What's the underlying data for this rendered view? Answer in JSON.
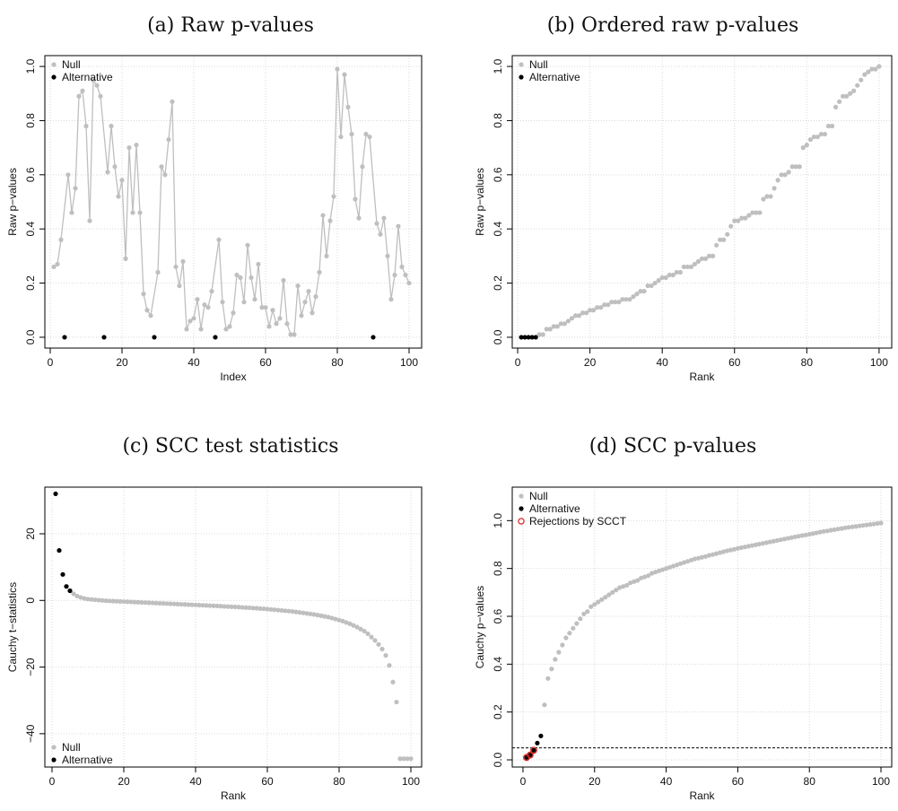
{
  "colors": {
    "null": "#bfbfbf",
    "alternative": "#000000",
    "rejection": "#e02020",
    "grid": "#d9d9d9"
  },
  "chart_data": [
    {
      "type": "line",
      "title": "(a) Raw p-values",
      "xlabel": "Index",
      "ylabel": "Raw p−values",
      "xlim": [
        -1.5,
        103.5
      ],
      "ylim": [
        -0.04,
        1.04
      ],
      "xticks": [
        0,
        20,
        40,
        60,
        80,
        100
      ],
      "yticks": [
        0.0,
        0.2,
        0.4,
        0.6,
        0.8,
        1.0
      ],
      "ytick_labels": [
        "0.0",
        "0.2",
        "0.4",
        "0.6",
        "0.8",
        "1.0"
      ],
      "grid": true,
      "connect_null": true,
      "legend": {
        "position": "top-left",
        "entries": [
          "Null",
          "Alternative"
        ]
      },
      "series": [
        {
          "name": "Null",
          "x": [
            1,
            2,
            3,
            5,
            6,
            7,
            8,
            9,
            10,
            11,
            12,
            13,
            14,
            16,
            17,
            18,
            19,
            20,
            21,
            22,
            23,
            24,
            25,
            26,
            27,
            28,
            30,
            31,
            32,
            33,
            34,
            35,
            36,
            37,
            38,
            39,
            40,
            41,
            42,
            43,
            44,
            45,
            47,
            48,
            49,
            50,
            51,
            52,
            53,
            54,
            55,
            56,
            57,
            58,
            59,
            60,
            61,
            62,
            63,
            64,
            65,
            66,
            67,
            68,
            69,
            70,
            71,
            72,
            73,
            74,
            75,
            76,
            77,
            78,
            79,
            80,
            81,
            82,
            83,
            84,
            85,
            86,
            87,
            88,
            89,
            91,
            92,
            93,
            94,
            95,
            96,
            97,
            98,
            99,
            100
          ],
          "y": [
            0.26,
            0.27,
            0.36,
            0.6,
            0.46,
            0.55,
            0.89,
            0.91,
            0.78,
            0.43,
            0.95,
            0.93,
            0.89,
            0.61,
            0.78,
            0.63,
            0.52,
            0.58,
            0.29,
            0.7,
            0.46,
            0.71,
            0.46,
            0.16,
            0.1,
            0.08,
            0.24,
            0.63,
            0.6,
            0.73,
            0.87,
            0.26,
            0.19,
            0.28,
            0.03,
            0.06,
            0.07,
            0.14,
            0.03,
            0.12,
            0.11,
            0.17,
            0.36,
            0.13,
            0.03,
            0.04,
            0.09,
            0.23,
            0.22,
            0.13,
            0.34,
            0.22,
            0.14,
            0.27,
            0.11,
            0.11,
            0.04,
            0.1,
            0.05,
            0.07,
            0.21,
            0.05,
            0.01,
            0.01,
            0.19,
            0.08,
            0.13,
            0.17,
            0.09,
            0.15,
            0.24,
            0.45,
            0.3,
            0.43,
            0.52,
            0.99,
            0.74,
            0.97,
            0.85,
            0.75,
            0.51,
            0.44,
            0.63,
            0.75,
            0.74,
            0.42,
            0.38,
            0.44,
            0.3,
            0.14,
            0.23,
            0.41,
            0.26,
            0.23,
            0.2
          ]
        },
        {
          "name": "Alternative",
          "x": [
            4,
            15,
            29,
            46,
            90
          ],
          "y": [
            0.0,
            0.0,
            0.0,
            0.0,
            0.0
          ]
        }
      ]
    },
    {
      "type": "scatter",
      "title": "(b) Ordered raw p-values",
      "xlabel": "Rank",
      "ylabel": "Raw p−values",
      "xlim": [
        -1.5,
        103.5
      ],
      "ylim": [
        -0.04,
        1.04
      ],
      "xticks": [
        0,
        20,
        40,
        60,
        80,
        100
      ],
      "yticks": [
        0.0,
        0.2,
        0.4,
        0.6,
        0.8,
        1.0
      ],
      "ytick_labels": [
        "0.0",
        "0.2",
        "0.4",
        "0.6",
        "0.8",
        "1.0"
      ],
      "grid": true,
      "legend": {
        "position": "top-left",
        "entries": [
          "Null",
          "Alternative"
        ]
      },
      "series": [
        {
          "name": "Null",
          "x": [
            6,
            7,
            8,
            9,
            10,
            11,
            12,
            13,
            14,
            15,
            16,
            17,
            18,
            19,
            20,
            21,
            22,
            23,
            24,
            25,
            26,
            27,
            28,
            29,
            30,
            31,
            32,
            33,
            34,
            35,
            36,
            37,
            38,
            39,
            40,
            41,
            42,
            43,
            44,
            45,
            46,
            47,
            48,
            49,
            50,
            51,
            52,
            53,
            54,
            55,
            56,
            57,
            58,
            59,
            60,
            61,
            62,
            63,
            64,
            65,
            66,
            67,
            68,
            69,
            70,
            71,
            72,
            73,
            74,
            75,
            76,
            77,
            78,
            79,
            80,
            81,
            82,
            83,
            84,
            85,
            86,
            87,
            88,
            89,
            90,
            91,
            92,
            93,
            94,
            95,
            96,
            97,
            98,
            99,
            100
          ],
          "y": [
            0.01,
            0.01,
            0.03,
            0.03,
            0.04,
            0.04,
            0.05,
            0.05,
            0.06,
            0.07,
            0.08,
            0.08,
            0.09,
            0.09,
            0.1,
            0.1,
            0.11,
            0.11,
            0.12,
            0.12,
            0.13,
            0.13,
            0.13,
            0.14,
            0.14,
            0.14,
            0.15,
            0.16,
            0.17,
            0.17,
            0.19,
            0.19,
            0.2,
            0.21,
            0.22,
            0.22,
            0.23,
            0.23,
            0.24,
            0.24,
            0.26,
            0.26,
            0.26,
            0.27,
            0.28,
            0.29,
            0.29,
            0.3,
            0.3,
            0.34,
            0.36,
            0.36,
            0.38,
            0.41,
            0.43,
            0.43,
            0.44,
            0.44,
            0.45,
            0.46,
            0.46,
            0.46,
            0.51,
            0.52,
            0.52,
            0.55,
            0.58,
            0.6,
            0.6,
            0.61,
            0.63,
            0.63,
            0.63,
            0.7,
            0.71,
            0.73,
            0.74,
            0.74,
            0.75,
            0.75,
            0.78,
            0.78,
            0.85,
            0.87,
            0.89,
            0.89,
            0.9,
            0.91,
            0.93,
            0.95,
            0.97,
            0.98,
            0.99,
            0.99,
            1.0
          ]
        },
        {
          "name": "Alternative",
          "x": [
            1,
            2,
            3,
            4,
            5
          ],
          "y": [
            0.0,
            0.0,
            0.0,
            0.0,
            0.0
          ]
        }
      ]
    },
    {
      "type": "scatter",
      "title": "(c) SCC test statistics",
      "xlabel": "Rank",
      "ylabel": "Cauchy t−statistics",
      "xlim": [
        -2,
        103
      ],
      "ylim": [
        -50,
        34
      ],
      "xticks": [
        0,
        20,
        40,
        60,
        80,
        100
      ],
      "yticks": [
        -40,
        -20,
        0,
        20
      ],
      "ytick_labels": [
        "−40",
        "−20",
        "0",
        "20"
      ],
      "grid": true,
      "legend": {
        "position": "bottom-left",
        "entries": [
          "Null",
          "Alternative"
        ]
      },
      "series": [
        {
          "name": "Null",
          "x": [
            6,
            7,
            8,
            9,
            10,
            11,
            12,
            13,
            14,
            15,
            16,
            17,
            18,
            19,
            20,
            21,
            22,
            23,
            24,
            25,
            26,
            27,
            28,
            29,
            30,
            31,
            32,
            33,
            34,
            35,
            36,
            37,
            38,
            39,
            40,
            41,
            42,
            43,
            44,
            45,
            46,
            47,
            48,
            49,
            50,
            51,
            52,
            53,
            54,
            55,
            56,
            57,
            58,
            59,
            60,
            61,
            62,
            63,
            64,
            65,
            66,
            67,
            68,
            69,
            70,
            71,
            72,
            73,
            74,
            75,
            76,
            77,
            78,
            79,
            80,
            81,
            82,
            83,
            84,
            85,
            86,
            87,
            88,
            89,
            90,
            91,
            92,
            93,
            94,
            95,
            96,
            97,
            98,
            99,
            100
          ],
          "y": [
            2.0,
            1.3,
            0.9,
            0.6,
            0.4,
            0.3,
            0.2,
            0.1,
            0.0,
            -0.1,
            -0.15,
            -0.2,
            -0.25,
            -0.3,
            -0.35,
            -0.4,
            -0.45,
            -0.5,
            -0.55,
            -0.6,
            -0.65,
            -0.7,
            -0.75,
            -0.8,
            -0.85,
            -0.9,
            -0.95,
            -1.0,
            -1.05,
            -1.1,
            -1.15,
            -1.2,
            -1.25,
            -1.3,
            -1.35,
            -1.4,
            -1.45,
            -1.5,
            -1.55,
            -1.6,
            -1.65,
            -1.7,
            -1.8,
            -1.85,
            -1.9,
            -1.95,
            -2.0,
            -2.1,
            -2.15,
            -2.2,
            -2.3,
            -2.35,
            -2.45,
            -2.5,
            -2.6,
            -2.7,
            -2.8,
            -2.9,
            -3.0,
            -3.1,
            -3.2,
            -3.3,
            -3.45,
            -3.6,
            -3.75,
            -3.9,
            -4.05,
            -4.2,
            -4.4,
            -4.6,
            -4.8,
            -5.0,
            -5.3,
            -5.6,
            -5.9,
            -6.2,
            -6.6,
            -7.0,
            -7.5,
            -8.0,
            -8.6,
            -9.2,
            -10.0,
            -11.0,
            -12.0,
            -13.2,
            -14.6,
            -16.5,
            -19.5,
            -24.5,
            -30.5,
            -47.5,
            -47.5,
            -47.5,
            -47.5
          ],
          "ymask_note": ""
        },
        {
          "name": "Alternative",
          "x": [
            1,
            2,
            3,
            4,
            5
          ],
          "y": [
            32.0,
            15.0,
            7.8,
            4.2,
            2.9
          ]
        }
      ]
    },
    {
      "type": "scatter",
      "title": "(d) SCC p-values",
      "xlabel": "Rank",
      "ylabel": "Cauchy p−values",
      "xlim": [
        -3,
        103
      ],
      "ylim": [
        -0.03,
        1.14
      ],
      "xticks": [
        0,
        20,
        40,
        60,
        80,
        100
      ],
      "yticks": [
        0.0,
        0.2,
        0.4,
        0.6,
        0.8,
        1.0
      ],
      "ytick_labels": [
        "0.0",
        "0.2",
        "0.4",
        "0.6",
        "0.8",
        "1.0"
      ],
      "grid": true,
      "hline": 0.05,
      "legend": {
        "position": "top-left",
        "entries": [
          "Null",
          "Alternative",
          "Rejections by SCCT"
        ]
      },
      "series": [
        {
          "name": "Null",
          "x": [
            6,
            7,
            8,
            9,
            10,
            11,
            12,
            13,
            14,
            15,
            16,
            17,
            18,
            19,
            20,
            21,
            22,
            23,
            24,
            25,
            26,
            27,
            28,
            29,
            30,
            31,
            32,
            33,
            34,
            35,
            36,
            37,
            38,
            39,
            40,
            41,
            42,
            43,
            44,
            45,
            46,
            47,
            48,
            49,
            50,
            51,
            52,
            53,
            54,
            55,
            56,
            57,
            58,
            59,
            60,
            61,
            62,
            63,
            64,
            65,
            66,
            67,
            68,
            69,
            70,
            71,
            72,
            73,
            74,
            75,
            76,
            77,
            78,
            79,
            80,
            81,
            82,
            83,
            84,
            85,
            86,
            87,
            88,
            89,
            90,
            91,
            92,
            93,
            94,
            95,
            96,
            97,
            98,
            99,
            100
          ],
          "y": [
            0.23,
            0.34,
            0.38,
            0.42,
            0.45,
            0.48,
            0.51,
            0.53,
            0.55,
            0.57,
            0.59,
            0.61,
            0.62,
            0.64,
            0.65,
            0.66,
            0.67,
            0.68,
            0.69,
            0.7,
            0.71,
            0.72,
            0.725,
            0.73,
            0.74,
            0.745,
            0.75,
            0.76,
            0.765,
            0.77,
            0.78,
            0.785,
            0.79,
            0.795,
            0.8,
            0.805,
            0.81,
            0.815,
            0.82,
            0.825,
            0.83,
            0.835,
            0.84,
            0.843,
            0.847,
            0.85,
            0.855,
            0.858,
            0.862,
            0.866,
            0.87,
            0.874,
            0.877,
            0.88,
            0.884,
            0.887,
            0.89,
            0.893,
            0.896,
            0.899,
            0.902,
            0.905,
            0.908,
            0.911,
            0.914,
            0.917,
            0.92,
            0.923,
            0.926,
            0.929,
            0.932,
            0.935,
            0.938,
            0.94,
            0.943,
            0.946,
            0.949,
            0.952,
            0.955,
            0.957,
            0.96,
            0.962,
            0.965,
            0.967,
            0.97,
            0.972,
            0.974,
            0.976,
            0.978,
            0.98,
            0.982,
            0.984,
            0.986,
            0.988,
            0.99
          ]
        },
        {
          "name": "Alternative",
          "x": [
            1,
            2,
            3,
            4,
            5
          ],
          "y": [
            0.01,
            0.02,
            0.04,
            0.07,
            0.1
          ]
        },
        {
          "name": "Rejections by SCCT",
          "x": [
            1,
            2,
            3
          ],
          "y": [
            0.01,
            0.02,
            0.04
          ]
        }
      ]
    }
  ]
}
